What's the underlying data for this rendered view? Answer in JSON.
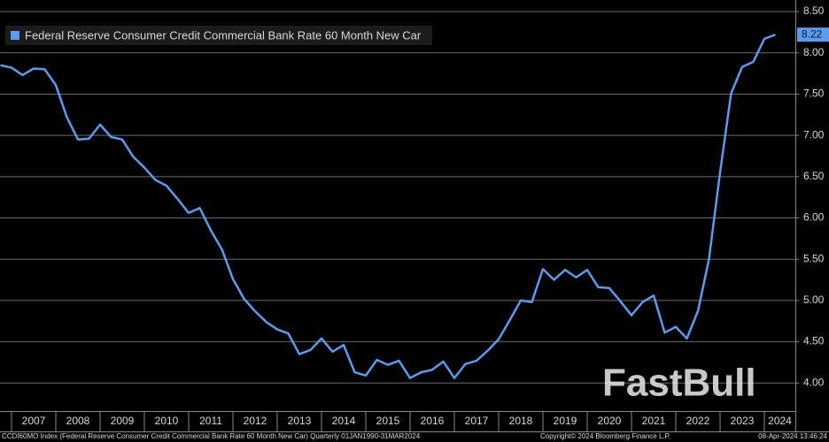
{
  "chart_data": {
    "type": "line",
    "legend": "top-left",
    "grid": true,
    "series": [
      {
        "name": "Federal Reserve Consumer Credit Commercial Bank Rate 60 Month New Car",
        "color": "#5b9bf0",
        "values": [
          7.85,
          7.82,
          7.73,
          7.81,
          7.8,
          7.61,
          7.22,
          6.95,
          6.96,
          7.13,
          6.98,
          6.95,
          6.74,
          6.61,
          6.46,
          6.39,
          6.23,
          6.06,
          6.12,
          5.85,
          5.62,
          5.26,
          5.02,
          4.87,
          4.74,
          4.65,
          4.6,
          4.35,
          4.4,
          4.54,
          4.38,
          4.46,
          4.13,
          4.09,
          4.28,
          4.22,
          4.27,
          4.06,
          4.13,
          4.16,
          4.26,
          4.06,
          4.23,
          4.27,
          4.39,
          4.53,
          4.76,
          5.0,
          4.98,
          5.38,
          5.25,
          5.37,
          5.28,
          5.37,
          5.16,
          5.15,
          4.99,
          4.82,
          4.98,
          5.06,
          4.61,
          4.68,
          4.54,
          4.87,
          5.5,
          6.55,
          7.51,
          7.83,
          7.89,
          8.17,
          8.22
        ]
      }
    ],
    "x": [
      2006.75,
      2007,
      2007.25,
      2007.5,
      2007.75,
      2008,
      2008.25,
      2008.5,
      2008.75,
      2009,
      2009.25,
      2009.5,
      2009.75,
      2010,
      2010.25,
      2010.5,
      2010.75,
      2011,
      2011.25,
      2011.5,
      2011.75,
      2012,
      2012.25,
      2012.5,
      2012.75,
      2013,
      2013.25,
      2013.5,
      2013.75,
      2014,
      2014.25,
      2014.5,
      2014.75,
      2015,
      2015.25,
      2015.5,
      2015.75,
      2016,
      2016.25,
      2016.5,
      2016.75,
      2017,
      2017.25,
      2017.5,
      2017.75,
      2018,
      2018.25,
      2018.5,
      2018.75,
      2019,
      2019.25,
      2019.5,
      2019.75,
      2020,
      2020.25,
      2020.5,
      2020.75,
      2021,
      2021.25,
      2021.5,
      2021.75,
      2022,
      2022.25,
      2022.5,
      2022.75,
      2023,
      2023.25,
      2023.5,
      2023.75,
      2024,
      2024.25
    ],
    "xlim": [
      2006.74,
      2024.7
    ],
    "xticks": [
      2007,
      2008,
      2009,
      2010,
      2011,
      2012,
      2013,
      2014,
      2015,
      2016,
      2017,
      2018,
      2019,
      2020,
      2021,
      2022,
      2023,
      2024
    ],
    "ylim": [
      3.66,
      8.64
    ],
    "yticks": [
      {
        "value": 4,
        "label": "4.00"
      },
      {
        "value": 4.5,
        "label": "4.50"
      },
      {
        "value": 5,
        "label": "5.00"
      },
      {
        "value": 5.5,
        "label": "5.50"
      },
      {
        "value": 6,
        "label": "6.00"
      },
      {
        "value": 6.5,
        "label": "6.50"
      },
      {
        "value": 7,
        "label": "7.00"
      },
      {
        "value": 7.5,
        "label": "7.50"
      },
      {
        "value": 8,
        "label": "8.00"
      },
      {
        "value": 8.5,
        "label": "8.50"
      }
    ],
    "footer_left": "CCDI60MO Index (Federal Reserve Consumer Credit Commercial Bank Rate 60 Month New Car)  Quarterly 01JAN1990-31MAR2024",
    "footer_center": "Copyright© 2024 Bloomberg Finance L.P.",
    "footer_right": "08-Apr-2024 13:46:24",
    "watermark": "FastBull"
  }
}
